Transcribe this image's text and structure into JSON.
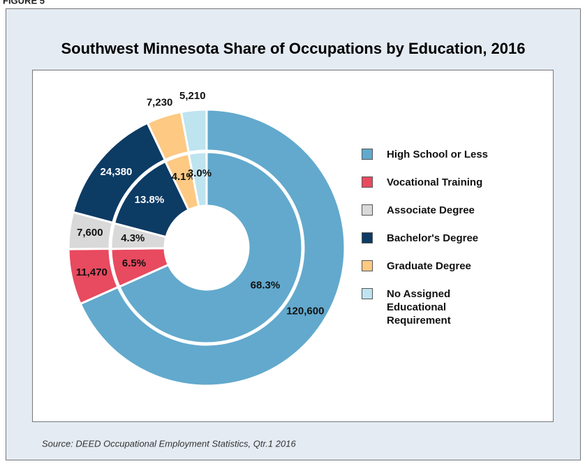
{
  "chart_data": {
    "type": "nested-donut",
    "figure_label": "FIGURE 5",
    "title": "Southwest Minnesota Share of Occupations by Education, 2016",
    "categories": [
      "High School or Less",
      "Vocational Training",
      "Associate Degree",
      "Bachelor's Degree",
      "Graduate Degree",
      "No Assigned Educational Requirement"
    ],
    "colors": [
      "#62a9cd",
      "#e84a5f",
      "#d9d9d9",
      "#0c3b64",
      "#fdc983",
      "#bde4ef"
    ],
    "values": [
      120600,
      11470,
      7600,
      24380,
      7230,
      5210
    ],
    "value_labels": [
      "120,600",
      "11,470",
      "7,600",
      "24,380",
      "7,230",
      "5,210"
    ],
    "inner_values": [
      68.3,
      6.5,
      4.3,
      13.8,
      4.1,
      3.0
    ],
    "inner_value_labels": [
      "68.3%",
      "6.5%",
      "4.3%",
      "13.8%",
      "4.1%",
      "3.0%"
    ],
    "source": "Source: DEED Occupational Employment Statistics, Qtr.1 2016"
  }
}
